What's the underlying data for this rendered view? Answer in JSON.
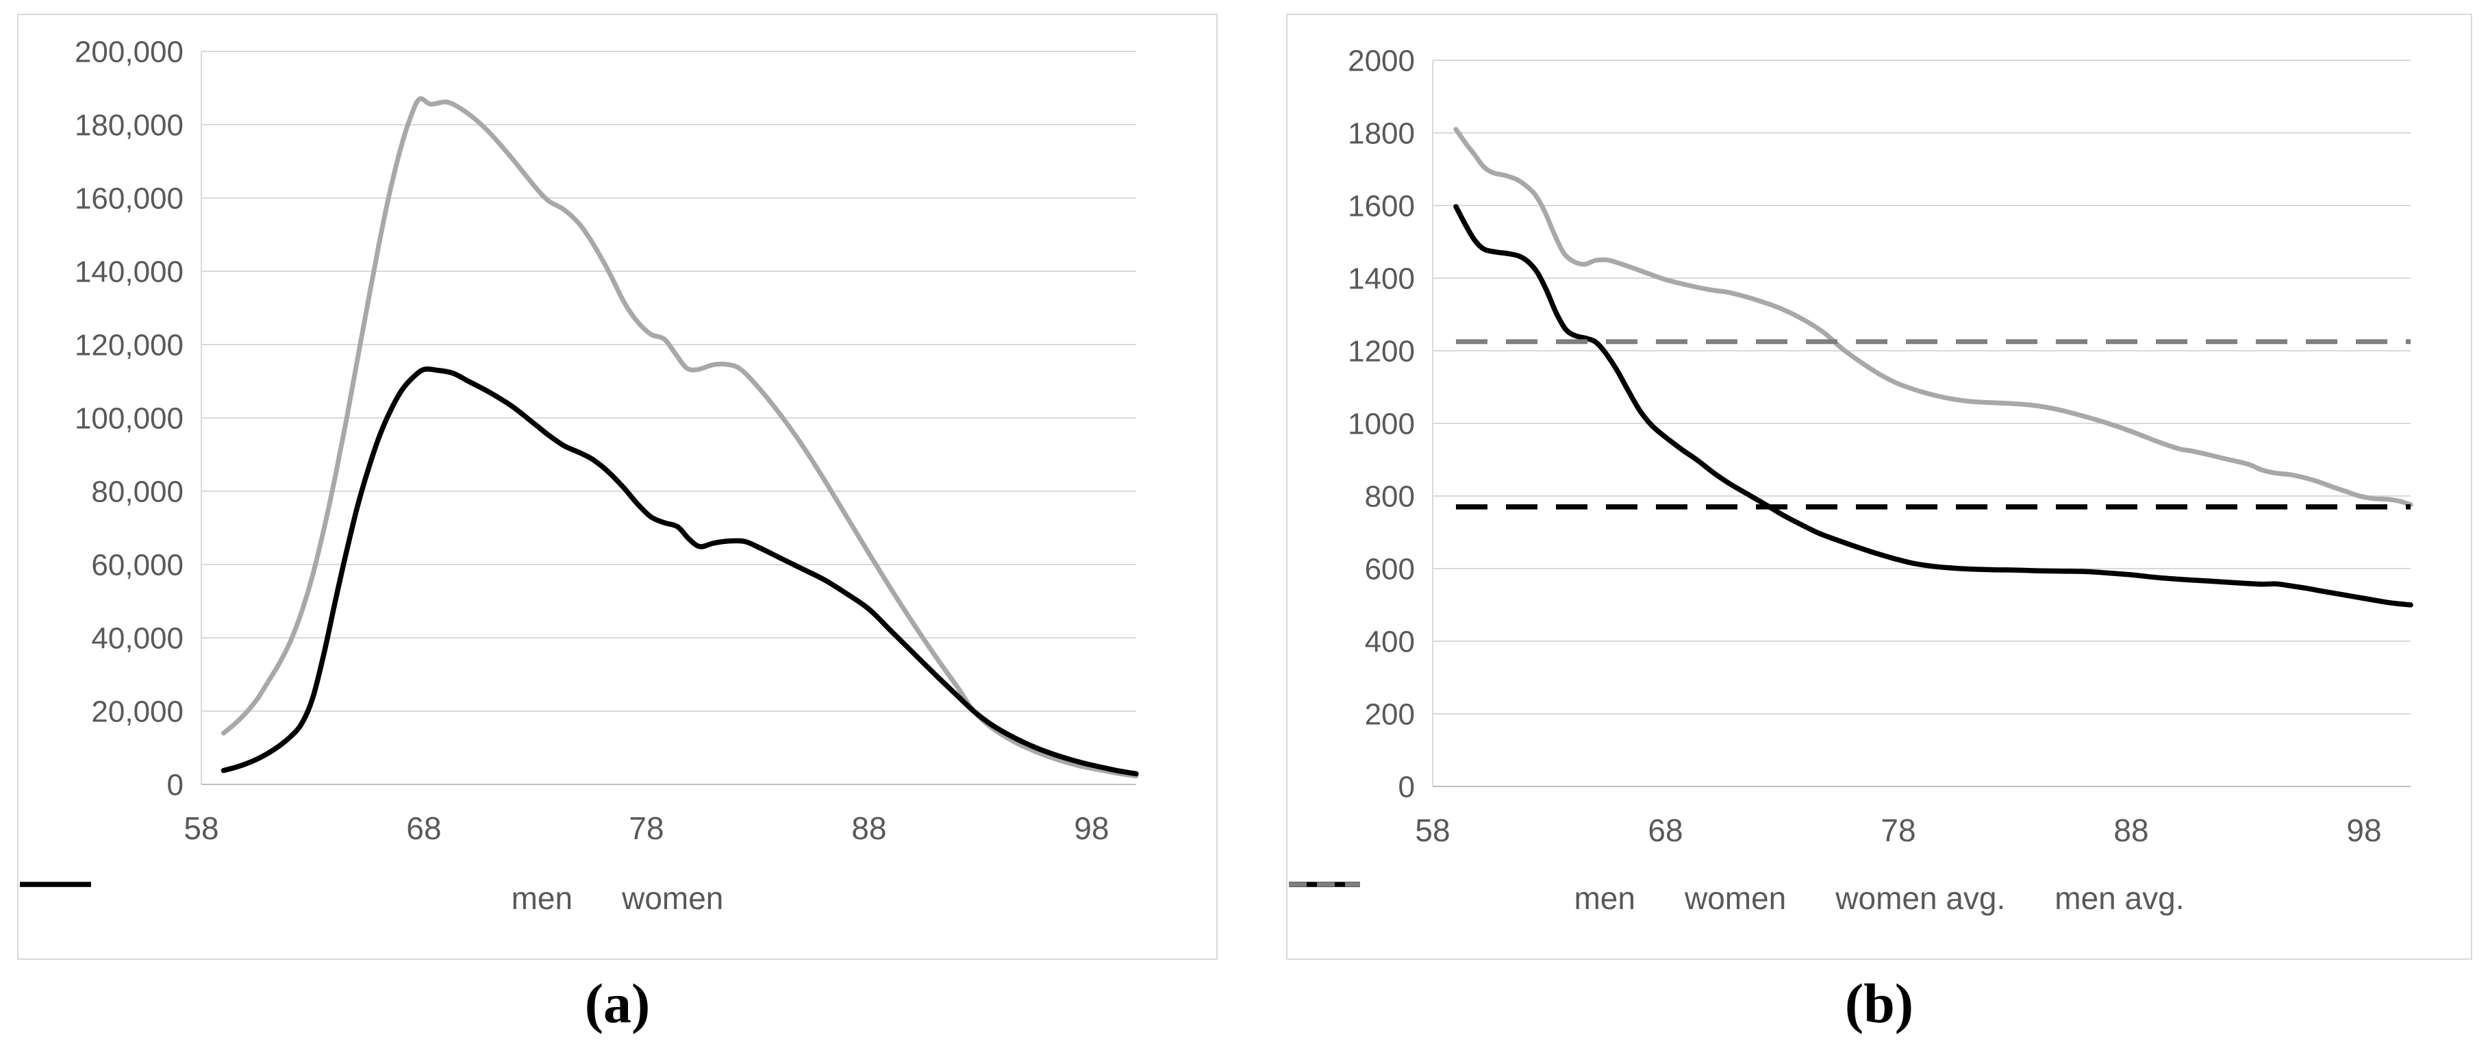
{
  "figure": {
    "caption_a": "(a)",
    "caption_b": "(b)",
    "colors": {
      "men": "#a8a8a8",
      "women": "#000000",
      "men_avg": "#7f7f7f",
      "women_avg": "#000000",
      "grid": "#d9d9d9",
      "axis": "#bfbfbf",
      "tick_text": "#595959",
      "legend_text": "#595959",
      "panel_border": "#d9d9d9"
    }
  },
  "chart_data": [
    {
      "id": "a",
      "type": "line",
      "title": "",
      "xlabel": "",
      "ylabel": "",
      "xlim": [
        58,
        100
      ],
      "ylim": [
        0,
        200000
      ],
      "xticks": [
        58,
        68,
        78,
        88,
        98
      ],
      "yticks": [
        [
          0,
          "0"
        ],
        [
          20000,
          "20,000"
        ],
        [
          40000,
          "40,000"
        ],
        [
          60000,
          "60,000"
        ],
        [
          80000,
          "80,000"
        ],
        [
          100000,
          "100,000"
        ],
        [
          120000,
          "120,000"
        ],
        [
          140000,
          "140,000"
        ],
        [
          160000,
          "160,000"
        ],
        [
          180000,
          "180,000"
        ],
        [
          200000,
          "200,000"
        ]
      ],
      "grid": true,
      "legend_position": "bottom",
      "series": [
        {
          "name": "men",
          "color_key": "men",
          "dash": null,
          "legend_dash": null,
          "width": 7,
          "points": [
            [
              59,
              14000
            ],
            [
              59.5,
              16500
            ],
            [
              60,
              19500
            ],
            [
              60.5,
              23200
            ],
            [
              61,
              28000
            ],
            [
              61.5,
              33000
            ],
            [
              62,
              39000
            ],
            [
              62.5,
              47000
            ],
            [
              63,
              57000
            ],
            [
              63.5,
              69500
            ],
            [
              64,
              83500
            ],
            [
              64.5,
              99000
            ],
            [
              65,
              115500
            ],
            [
              65.5,
              132000
            ],
            [
              66,
              148000
            ],
            [
              66.5,
              162500
            ],
            [
              67,
              174500
            ],
            [
              67.4,
              182000
            ],
            [
              67.8,
              187000
            ],
            [
              68.3,
              185600
            ],
            [
              69,
              186200
            ],
            [
              69.6,
              184600
            ],
            [
              70.3,
              181500
            ],
            [
              71,
              177500
            ],
            [
              72,
              170500
            ],
            [
              73,
              163000
            ],
            [
              73.6,
              159200
            ],
            [
              74.3,
              156800
            ],
            [
              75,
              152800
            ],
            [
              75.6,
              147500
            ],
            [
              76.3,
              140000
            ],
            [
              77,
              131500
            ],
            [
              77.6,
              126200
            ],
            [
              78.2,
              122800
            ],
            [
              78.8,
              121500
            ],
            [
              79.3,
              117500
            ],
            [
              79.8,
              113600
            ],
            [
              80.3,
              113200
            ],
            [
              81,
              114500
            ],
            [
              81.6,
              114600
            ],
            [
              82.2,
              113400
            ],
            [
              83,
              108500
            ],
            [
              84,
              101000
            ],
            [
              85,
              92500
            ],
            [
              86,
              83000
            ],
            [
              87,
              73000
            ],
            [
              88,
              63000
            ],
            [
              89,
              53200
            ],
            [
              90,
              43800
            ],
            [
              91,
              34800
            ],
            [
              92,
              26300
            ],
            [
              92.7,
              20000
            ],
            [
              93.5,
              15500
            ],
            [
              94.5,
              11700
            ],
            [
              95.5,
              8900
            ],
            [
              96.5,
              6700
            ],
            [
              97.5,
              5000
            ],
            [
              98.5,
              3800
            ],
            [
              99.2,
              3000
            ],
            [
              100,
              2300
            ]
          ]
        },
        {
          "name": "women",
          "color_key": "women",
          "dash": null,
          "legend_dash": null,
          "width": 7.5,
          "points": [
            [
              59,
              3800
            ],
            [
              59.5,
              4600
            ],
            [
              60,
              5600
            ],
            [
              60.5,
              6900
            ],
            [
              61,
              8500
            ],
            [
              61.5,
              10500
            ],
            [
              62,
              13000
            ],
            [
              62.5,
              16500
            ],
            [
              63,
              23500
            ],
            [
              63.5,
              35500
            ],
            [
              64,
              49500
            ],
            [
              64.5,
              63000
            ],
            [
              65,
              75500
            ],
            [
              65.5,
              86000
            ],
            [
              66,
              95000
            ],
            [
              66.5,
              102000
            ],
            [
              67,
              107500
            ],
            [
              67.5,
              111000
            ],
            [
              68,
              113200
            ],
            [
              68.6,
              113000
            ],
            [
              69.3,
              112200
            ],
            [
              70,
              110000
            ],
            [
              71,
              106800
            ],
            [
              72,
              103000
            ],
            [
              73,
              98200
            ],
            [
              73.6,
              95300
            ],
            [
              74.3,
              92400
            ],
            [
              75,
              90500
            ],
            [
              75.6,
              88600
            ],
            [
              76.3,
              85200
            ],
            [
              77,
              80800
            ],
            [
              77.6,
              76500
            ],
            [
              78.2,
              73000
            ],
            [
              78.8,
              71400
            ],
            [
              79.4,
              70300
            ],
            [
              79.9,
              67000
            ],
            [
              80.4,
              64900
            ],
            [
              81,
              65800
            ],
            [
              81.7,
              66400
            ],
            [
              82.4,
              66300
            ],
            [
              83,
              64800
            ],
            [
              84,
              61800
            ],
            [
              85,
              58800
            ],
            [
              86,
              55800
            ],
            [
              87,
              52000
            ],
            [
              88,
              47800
            ],
            [
              89,
              41800
            ],
            [
              90,
              35800
            ],
            [
              91,
              29800
            ],
            [
              92,
              24000
            ],
            [
              92.7,
              20000
            ],
            [
              93.5,
              16300
            ],
            [
              94.5,
              12800
            ],
            [
              95.5,
              10000
            ],
            [
              96.5,
              7800
            ],
            [
              97.5,
              6000
            ],
            [
              98.5,
              4600
            ],
            [
              99.2,
              3700
            ],
            [
              100,
              2900
            ]
          ]
        }
      ]
    },
    {
      "id": "b",
      "type": "line",
      "title": "",
      "xlabel": "",
      "ylabel": "",
      "xlim": [
        58,
        100
      ],
      "ylim": [
        0,
        2000
      ],
      "xticks": [
        58,
        68,
        78,
        88,
        98
      ],
      "yticks": [
        [
          0,
          "0"
        ],
        [
          200,
          "200"
        ],
        [
          400,
          "400"
        ],
        [
          600,
          "600"
        ],
        [
          800,
          "800"
        ],
        [
          1000,
          "1000"
        ],
        [
          1200,
          "1200"
        ],
        [
          1400,
          "1400"
        ],
        [
          1600,
          "1600"
        ],
        [
          1800,
          "1800"
        ],
        [
          2000,
          "2000"
        ]
      ],
      "grid": true,
      "legend_position": "bottom",
      "series": [
        {
          "name": "men",
          "color_key": "men",
          "dash": null,
          "legend_dash": null,
          "width": 7,
          "points": [
            [
              59,
              1810
            ],
            [
              59.4,
              1773
            ],
            [
              59.8,
              1740
            ],
            [
              60.2,
              1706
            ],
            [
              60.6,
              1690
            ],
            [
              61.1,
              1683
            ],
            [
              61.6,
              1672
            ],
            [
              62,
              1655
            ],
            [
              62.4,
              1630
            ],
            [
              62.8,
              1585
            ],
            [
              63.2,
              1525
            ],
            [
              63.6,
              1472
            ],
            [
              64,
              1448
            ],
            [
              64.5,
              1438
            ],
            [
              65,
              1449
            ],
            [
              65.5,
              1450
            ],
            [
              66,
              1441
            ],
            [
              66.6,
              1428
            ],
            [
              67.2,
              1414
            ],
            [
              68,
              1396
            ],
            [
              69,
              1380
            ],
            [
              70,
              1367
            ],
            [
              70.6,
              1362
            ],
            [
              71.2,
              1353
            ],
            [
              72,
              1338
            ],
            [
              73,
              1315
            ],
            [
              74,
              1283
            ],
            [
              74.8,
              1250
            ],
            [
              75.6,
              1205
            ],
            [
              76.4,
              1168
            ],
            [
              77.2,
              1135
            ],
            [
              78,
              1109
            ],
            [
              79,
              1087
            ],
            [
              80,
              1071
            ],
            [
              81,
              1061
            ],
            [
              82,
              1057
            ],
            [
              83,
              1054
            ],
            [
              84,
              1048
            ],
            [
              85,
              1036
            ],
            [
              86,
              1019
            ],
            [
              87,
              1000
            ],
            [
              88,
              978
            ],
            [
              89,
              953
            ],
            [
              90,
              931
            ],
            [
              90.6,
              924
            ],
            [
              91.3,
              914
            ],
            [
              92,
              903
            ],
            [
              93,
              888
            ],
            [
              93.6,
              872
            ],
            [
              94.2,
              863
            ],
            [
              94.8,
              859
            ],
            [
              95.4,
              851
            ],
            [
              96,
              840
            ],
            [
              96.6,
              826
            ],
            [
              97.2,
              813
            ],
            [
              97.8,
              800
            ],
            [
              98.4,
              793
            ],
            [
              99,
              791
            ],
            [
              99.5,
              786
            ],
            [
              100,
              776
            ]
          ]
        },
        {
          "name": "women",
          "color_key": "women",
          "dash": null,
          "legend_dash": null,
          "width": 7.5,
          "points": [
            [
              59,
              1597
            ],
            [
              59.4,
              1548
            ],
            [
              59.8,
              1505
            ],
            [
              60.2,
              1480
            ],
            [
              60.7,
              1472
            ],
            [
              61.2,
              1468
            ],
            [
              61.7,
              1461
            ],
            [
              62.1,
              1445
            ],
            [
              62.5,
              1415
            ],
            [
              62.9,
              1365
            ],
            [
              63.3,
              1305
            ],
            [
              63.7,
              1260
            ],
            [
              64.1,
              1242
            ],
            [
              64.6,
              1234
            ],
            [
              65,
              1224
            ],
            [
              65.4,
              1196
            ],
            [
              65.9,
              1148
            ],
            [
              66.4,
              1090
            ],
            [
              66.9,
              1035
            ],
            [
              67.4,
              995
            ],
            [
              68,
              962
            ],
            [
              68.7,
              928
            ],
            [
              69.4,
              897
            ],
            [
              70.1,
              862
            ],
            [
              70.8,
              832
            ],
            [
              71.5,
              806
            ],
            [
              72.2,
              780
            ],
            [
              73,
              749
            ],
            [
              73.8,
              722
            ],
            [
              74.6,
              697
            ],
            [
              75.4,
              678
            ],
            [
              76.2,
              660
            ],
            [
              77,
              643
            ],
            [
              77.8,
              628
            ],
            [
              78.6,
              615
            ],
            [
              79.4,
              607
            ],
            [
              80.2,
              602
            ],
            [
              81,
              599
            ],
            [
              82,
              597
            ],
            [
              83,
              596
            ],
            [
              84,
              594
            ],
            [
              85,
              593
            ],
            [
              86,
              592
            ],
            [
              87,
              588
            ],
            [
              88,
              583
            ],
            [
              89,
              576
            ],
            [
              90,
              571
            ],
            [
              91,
              567
            ],
            [
              92,
              563
            ],
            [
              93,
              559
            ],
            [
              93.6,
              557
            ],
            [
              94.2,
              558
            ],
            [
              94.8,
              553
            ],
            [
              95.5,
              546
            ],
            [
              96.2,
              538
            ],
            [
              97,
              529
            ],
            [
              98,
              518
            ],
            [
              99,
              507
            ],
            [
              99.5,
              503
            ],
            [
              100,
              500
            ]
          ]
        },
        {
          "name": "women avg.",
          "color_key": "women_avg",
          "dash": "46 27",
          "legend_dash": "26 15",
          "width": 7.5,
          "points": [
            [
              59,
              770
            ],
            [
              100,
              770
            ]
          ]
        },
        {
          "name": "men avg.",
          "color_key": "men_avg",
          "dash": "46 27",
          "legend_dash": "26 15",
          "width": 7,
          "points": [
            [
              59,
              1225
            ],
            [
              100,
              1225
            ]
          ]
        }
      ]
    }
  ]
}
